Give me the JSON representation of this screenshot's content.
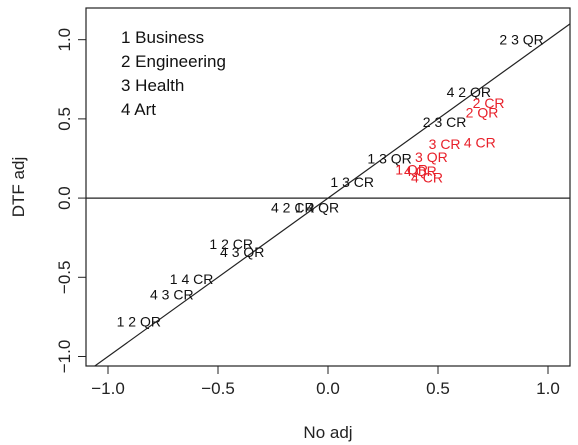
{
  "chart_data": {
    "type": "scatter",
    "title": "",
    "xlabel": "No adj",
    "ylabel": "DTF adj",
    "xlim": [
      -1.1,
      1.1
    ],
    "ylim": [
      -1.06,
      1.2
    ],
    "xticks": [
      -1.0,
      -0.5,
      0.0,
      0.5,
      1.0
    ],
    "xtick_labels": [
      "−1.0",
      "−0.5",
      "0.0",
      "0.5",
      "1.0"
    ],
    "yticks": [
      -1.0,
      -0.5,
      0.0,
      0.5,
      1.0
    ],
    "ytick_labels": [
      "−1.0",
      "−0.5",
      "0.0",
      "0.5",
      "1.0"
    ],
    "reference_lines": [
      {
        "kind": "identity",
        "slope": 1,
        "intercept": 0
      },
      {
        "kind": "horizontal",
        "y": 0
      }
    ],
    "grid": false,
    "legend_position": "top-left",
    "legend": [
      "1 Business",
      "2 Engineering",
      "3 Health",
      "4 Art"
    ],
    "colors": {
      "black": "#111111",
      "red": "#e8202a"
    },
    "points": [
      {
        "label": "2 3 QR",
        "x": 0.88,
        "y": 1.0,
        "color": "black"
      },
      {
        "label": "4 2 QR",
        "x": 0.64,
        "y": 0.67,
        "color": "black"
      },
      {
        "label": "2 CR",
        "x": 0.73,
        "y": 0.6,
        "color": "red"
      },
      {
        "label": "2 QR",
        "x": 0.7,
        "y": 0.54,
        "color": "red"
      },
      {
        "label": "2 3 CR",
        "x": 0.53,
        "y": 0.48,
        "color": "black"
      },
      {
        "label": "3 CR",
        "x": 0.53,
        "y": 0.34,
        "color": "red"
      },
      {
        "label": "4 CR",
        "x": 0.69,
        "y": 0.35,
        "color": "red"
      },
      {
        "label": "1 3 QR",
        "x": 0.28,
        "y": 0.25,
        "color": "black"
      },
      {
        "label": "3 QR",
        "x": 0.47,
        "y": 0.26,
        "color": "red"
      },
      {
        "label": "1 QR",
        "x": 0.38,
        "y": 0.18,
        "color": "red"
      },
      {
        "label": "4 QR",
        "x": 0.42,
        "y": 0.17,
        "color": "red"
      },
      {
        "label": "4 CR",
        "x": 0.45,
        "y": 0.13,
        "color": "red"
      },
      {
        "label": "1 3 CR",
        "x": 0.11,
        "y": 0.1,
        "color": "black"
      },
      {
        "label": "4 2 CR",
        "x": -0.16,
        "y": -0.06,
        "color": "black"
      },
      {
        "label": "1 4 QR",
        "x": -0.05,
        "y": -0.06,
        "color": "black"
      },
      {
        "label": "1 2 CR",
        "x": -0.44,
        "y": -0.29,
        "color": "black"
      },
      {
        "label": "4 3 QR",
        "x": -0.39,
        "y": -0.34,
        "color": "black"
      },
      {
        "label": "1 4 CR",
        "x": -0.62,
        "y": -0.51,
        "color": "black"
      },
      {
        "label": "4 3 CR",
        "x": -0.71,
        "y": -0.61,
        "color": "black"
      },
      {
        "label": "1 2 QR",
        "x": -0.86,
        "y": -0.78,
        "color": "black"
      }
    ]
  }
}
